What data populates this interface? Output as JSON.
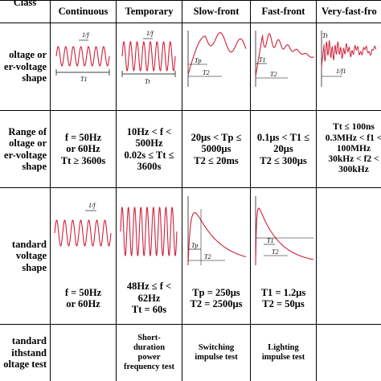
{
  "header": {
    "class_label": "Class",
    "columns": [
      "Continuous",
      "Temporary",
      "Slow-front",
      "Fast-front",
      "Very-fast-fro"
    ]
  },
  "rows": {
    "shape": {
      "label": "oltage or\ner-voltage\nshape"
    },
    "range": {
      "label": "Range of\noltage or\ner-voltage\nshape",
      "values": [
        "f = 50Hz\nor 60Hz\nTt ≥ 3600s",
        "10Hz < f <\n500Hz\n0.02s ≤ Tt ≤\n3600s",
        "20μs < Tp ≤\n5000μs\nT2 ≤ 20ms",
        "0.1μs < T1 ≤\n20μs\nT2 ≤ 300μs",
        "Tt ≤ 100ns\n0.3MHz < f1 <\n100MHz\n30kHz < f2 <\n300kHz"
      ]
    },
    "standard_shape": {
      "label": "tandard\nvoltage\nshape",
      "values": [
        "f = 50Hz\nor 60Hz",
        "48Hz ≤ f <\n62Hz\nTt = 60s",
        "Tp = 250μs\nT2 = 2500μs",
        "T1 = 1.2μs\nT2 = 50μs",
        ""
      ]
    },
    "withstand": {
      "label": "tandard\nithstand\noltage test",
      "values": [
        "",
        "Short-\nduration\npower\nfrequency test",
        "Switching\nimpulse test",
        "Lighting\nimpulse test",
        ""
      ]
    }
  },
  "wave_labels": {
    "one_over_f": "1/f",
    "t1": "T1",
    "tt": "Tt",
    "tp": "Tp",
    "t2": "T2",
    "one_over_f1": "1/f1"
  },
  "colors": {
    "wave": "#d0203a",
    "line": "#000000"
  }
}
